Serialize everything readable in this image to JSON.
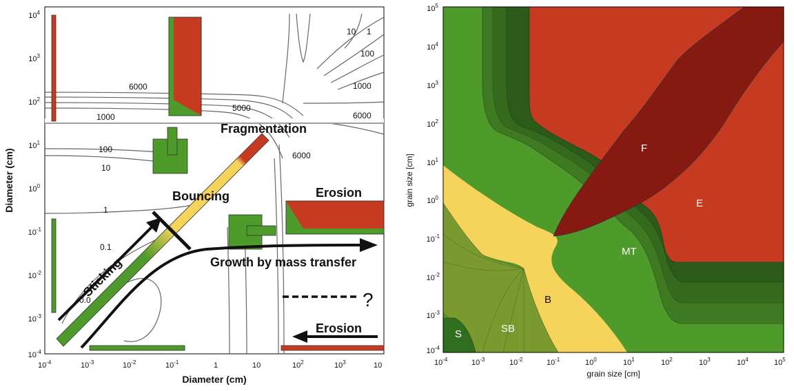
{
  "left_panel": {
    "xlabel": "Diameter (cm)",
    "ylabel": "Diameter (cm)",
    "x_ticks": [
      "10",
      "10",
      "10",
      "10",
      "10",
      "10",
      "10",
      "10"
    ],
    "x_exps": [
      "-4",
      "-3",
      "-2",
      "-1",
      "",
      "",
      "2",
      "3"
    ],
    "x_tick_plain": [
      "1",
      "10"
    ],
    "x_last": "10",
    "y_ticks": [
      "10",
      "10",
      "10",
      "10",
      "10",
      "10",
      "10",
      "10",
      "10"
    ],
    "y_exps": [
      "4",
      "3",
      "2",
      "1",
      "0",
      "-1",
      "-2",
      "-3",
      "-4"
    ],
    "regions": {
      "fragmentation": "Fragmentation",
      "bouncing": "Bouncing",
      "erosion_top": "Erosion",
      "sticking": "Sticking",
      "growth": "Growth by mass transfer",
      "erosion_bottom": "Erosion",
      "question": "?"
    },
    "contour_labels": [
      "6000",
      "1000",
      "5000",
      "10",
      "1",
      "100",
      "1000",
      "6000",
      "100",
      "10",
      "6000",
      "1",
      "0.1",
      "0.0"
    ]
  },
  "right_panel": {
    "xlabel": "grain size [cm]",
    "ylabel": "grain size [cm]",
    "x_exps": [
      "-4",
      "-3",
      "-2",
      "-1",
      "0",
      "1",
      "2",
      "3",
      "4",
      "5"
    ],
    "y_exps": [
      "5",
      "4",
      "3",
      "2",
      "1",
      "0",
      "-1",
      "-2",
      "-3",
      "-4"
    ],
    "tick_base": "10",
    "regions": {
      "F": "F",
      "E": "E",
      "MT": "MT",
      "B": "B",
      "SB": "SB",
      "S": "S"
    }
  },
  "colors": {
    "red": "#c73a22",
    "dark_red": "#861a12",
    "green": "#4e9a2a",
    "yellow": "#f6d35a"
  }
}
